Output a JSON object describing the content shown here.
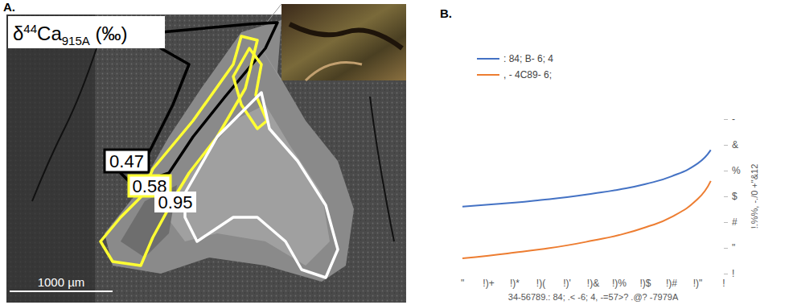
{
  "panels": {
    "A": {
      "label": "A.",
      "title": {
        "pre": "δ",
        "sup": "44",
        "main": "Ca",
        "sub": "915A",
        "post": " (‰)"
      },
      "regions": [
        {
          "label": "0.47",
          "color": "#000000"
        },
        {
          "label": "0.58",
          "color": "#ffff33"
        },
        {
          "label": "0.95",
          "color": "#ffffff"
        }
      ],
      "scale_bar": "1000 µm"
    },
    "B": {
      "label": "B."
    }
  },
  "chart_data": {
    "type": "line",
    "x_label": "34-56789.: 84; .< -6; 4, -=57>? .@? -7979A",
    "y_label": "!.%%, -./0 +\"&12",
    "series": [
      {
        "name": ": 84; B- 6; 4",
        "color": "#4472c4",
        "x": [
          1,
          0.9,
          0.8,
          0.7,
          0.6,
          0.5,
          0.4,
          0.3,
          0.2,
          0.1,
          0.05
        ],
        "values": [
          2.6,
          2.68,
          2.76,
          2.86,
          2.97,
          3.11,
          3.27,
          3.48,
          3.78,
          4.28,
          4.8
        ]
      },
      {
        "name": ", - 4C89- 6;",
        "color": "#ed7d31",
        "x": [
          1,
          0.9,
          0.8,
          0.7,
          0.6,
          0.5,
          0.4,
          0.3,
          0.2,
          0.1,
          0.05
        ],
        "values": [
          0.6,
          0.7,
          0.82,
          0.95,
          1.1,
          1.29,
          1.5,
          1.8,
          2.2,
          2.9,
          3.6
        ]
      }
    ],
    "xlim": [
      0,
      1
    ],
    "xticks": [
      {
        "value": 1,
        "label": "\""
      },
      {
        "value": 0.9,
        "label": "!)+"
      },
      {
        "value": 0.8,
        "label": "!)*"
      },
      {
        "value": 0.7,
        "label": "!)("
      },
      {
        "value": 0.6,
        "label": "!)'"
      },
      {
        "value": 0.5,
        "label": "!)&"
      },
      {
        "value": 0.4,
        "label": "!)%"
      },
      {
        "value": 0.3,
        "label": "!)$"
      },
      {
        "value": 0.2,
        "label": "!)#"
      },
      {
        "value": 0.1,
        "label": "!)\""
      },
      {
        "value": 0,
        "label": "!"
      }
    ],
    "ylim": [
      0,
      6
    ],
    "yticks": [
      {
        "value": 0,
        "label": "!"
      },
      {
        "value": 1,
        "label": "\""
      },
      {
        "value": 2,
        "label": "#"
      },
      {
        "value": 3,
        "label": "$"
      },
      {
        "value": 4,
        "label": "%"
      },
      {
        "value": 5,
        "label": "&"
      },
      {
        "value": 6,
        "label": "-"
      }
    ],
    "grid": false,
    "legend": "top-left"
  }
}
